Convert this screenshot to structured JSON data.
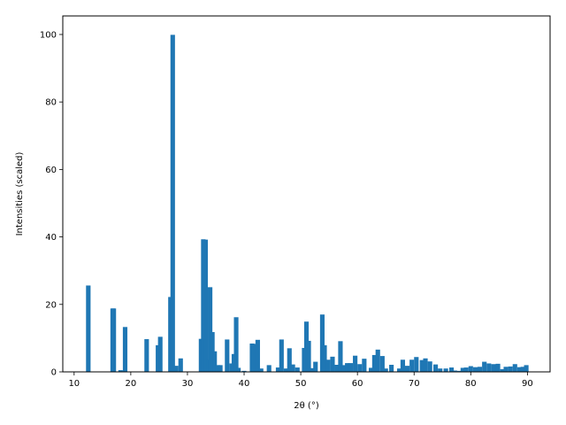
{
  "chart_data": {
    "type": "bar",
    "title": "",
    "xlabel": "2θ (°)",
    "ylabel": "Intensities (scaled)",
    "xlim": [
      8.0,
      94.0
    ],
    "ylim": [
      0,
      105.5
    ],
    "xticks": [
      10,
      20,
      30,
      40,
      50,
      60,
      70,
      80,
      90
    ],
    "yticks": [
      0,
      20,
      40,
      60,
      80,
      100
    ],
    "bar_width": 0.8,
    "color": "#1f77b4",
    "grid": false,
    "legend": "none",
    "series": [
      {
        "x": [
          12.5,
          16.8,
          17.0,
          18.2,
          19.0,
          22.8,
          24.8,
          25.2,
          27.0,
          27.4,
          28.0,
          28.8,
          32.4,
          32.8,
          33.2,
          33.8,
          34.0,
          34.4,
          34.8,
          35.4,
          35.8,
          37.0,
          37.8,
          38.2,
          38.6,
          39.0,
          40.0,
          41.4,
          41.8,
          42.4,
          43.0,
          44.4,
          46.0,
          46.6,
          47.4,
          48.0,
          48.6,
          49.4,
          50.6,
          51.0,
          51.4,
          52.0,
          52.6,
          53.8,
          54.2,
          54.8,
          55.6,
          56.4,
          57.0,
          57.6,
          58.2,
          58.8,
          59.6,
          60.4,
          61.2,
          62.4,
          63.0,
          63.6,
          64.4,
          65.0,
          66.0,
          67.4,
          68.0,
          68.8,
          69.6,
          70.4,
          71.4,
          72.0,
          72.8,
          73.8,
          74.6,
          75.6,
          76.6,
          77.2,
          78.0,
          78.6,
          79.2,
          80.0,
          80.8,
          81.6,
          82.4,
          83.2,
          84.0,
          84.8,
          85.6,
          86.2,
          87.0,
          87.8,
          88.6,
          89.2,
          89.8
        ],
        "values": [
          25.6,
          18.8,
          18.8,
          0.5,
          13.3,
          9.7,
          7.9,
          10.4,
          22.2,
          99.9,
          1.8,
          4.0,
          9.8,
          39.3,
          39.2,
          3.6,
          25.1,
          11.8,
          6.1,
          2.0,
          2.0,
          9.6,
          2.5,
          5.3,
          16.2,
          1.2,
          0.3,
          8.4,
          8.3,
          9.5,
          1.0,
          2.0,
          1.3,
          9.6,
          1.0,
          7.0,
          2.2,
          1.3,
          7.1,
          14.9,
          9.2,
          1.1,
          3.0,
          17.0,
          7.9,
          3.6,
          4.5,
          2.1,
          9.1,
          2.0,
          2.6,
          2.6,
          4.8,
          2.3,
          3.9,
          1.2,
          5.0,
          6.6,
          4.7,
          1.0,
          2.1,
          1.0,
          3.6,
          1.8,
          3.6,
          4.4,
          3.5,
          4.0,
          3.1,
          2.2,
          1.0,
          1.0,
          1.3,
          0.4,
          0.3,
          1.2,
          1.3,
          1.7,
          1.4,
          1.5,
          3.0,
          2.5,
          2.3,
          2.4,
          0.8,
          1.5,
          1.6,
          2.3,
          1.4,
          1.5,
          2.0
        ]
      }
    ]
  }
}
